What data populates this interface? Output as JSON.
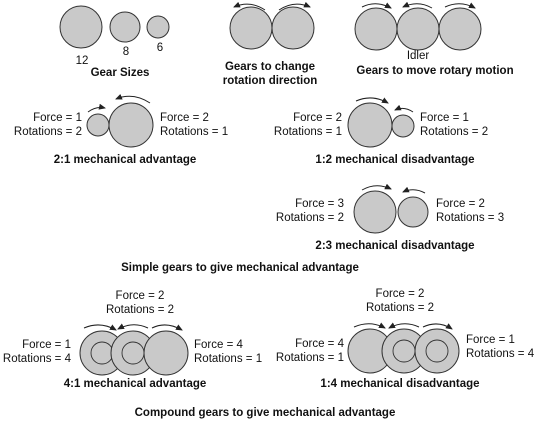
{
  "gear_sizes": {
    "sizes": [
      "12",
      "8",
      "6"
    ],
    "caption": "Gear Sizes"
  },
  "direction": {
    "caption_line1": "Gears to change",
    "caption_line2": "rotation direction"
  },
  "idler": {
    "label": "Idler",
    "caption": "Gears to move rotary motion"
  },
  "simple": {
    "advantage_2_1": {
      "force_left": "Force = 1",
      "rotations_left": "Rotations = 2",
      "force_right": "Force = 2",
      "rotations_right": "Rotations = 1",
      "caption": "2:1 mechanical advantage"
    },
    "disadvantage_1_2": {
      "force_left": "Force = 2",
      "rotations_left": "Rotations = 1",
      "force_right": "Force = 1",
      "rotations_right": "Rotations = 2",
      "caption": "1:2 mechanical disadvantage"
    },
    "disadvantage_2_3": {
      "force_left": "Force = 3",
      "rotations_left": "Rotations = 2",
      "force_right": "Force = 2",
      "rotations_right": "Rotations = 3",
      "caption": "2:3 mechanical disadvantage"
    },
    "section_caption": "Simple gears to give mechanical advantage"
  },
  "compound": {
    "advantage_4_1": {
      "force_top": "Force = 2",
      "rotations_top": "Rotations = 2",
      "force_left": "Force = 1",
      "rotations_left": "Rotations = 4",
      "force_right": "Force = 4",
      "rotations_right": "Rotations = 1",
      "caption": "4:1 mechanical advantage"
    },
    "disadvantage_1_4": {
      "force_top": "Force = 2",
      "rotations_top": "Rotations = 2",
      "force_left": "Force = 4",
      "rotations_left": "Rotations = 1",
      "force_right": "Force = 1",
      "rotations_right": "Rotations = 4",
      "caption": "1:4 mechanical disadvantage"
    },
    "section_caption": "Compound gears to give mechanical advantage"
  }
}
